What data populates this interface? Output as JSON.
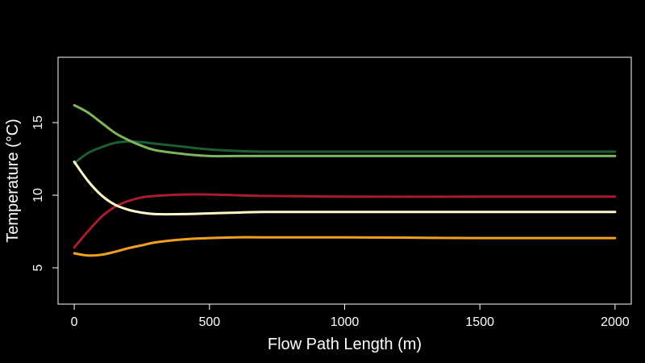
{
  "chart_data": {
    "type": "line",
    "title": "",
    "xlabel": "Flow Path Length (m)",
    "ylabel": "Temperature (°C)",
    "xlim": [
      -60,
      2060
    ],
    "ylim": [
      2.5,
      19.5
    ],
    "x_ticks": [
      0,
      500,
      1000,
      1500,
      2000
    ],
    "y_ticks": [
      5,
      10,
      15
    ],
    "grid": false,
    "background": "#000000",
    "axis_color": "#ffffff",
    "series": [
      {
        "color": "#1b5e35",
        "x": [
          0,
          50,
          100,
          150,
          200,
          250,
          300,
          400,
          500,
          600,
          700,
          1000,
          1500,
          2000
        ],
        "y": [
          12.2,
          12.9,
          13.3,
          13.6,
          13.7,
          13.65,
          13.55,
          13.35,
          13.15,
          13.05,
          13.0,
          13.0,
          13.0,
          13.0
        ]
      },
      {
        "color": "#7cb55c",
        "x": [
          0,
          50,
          100,
          150,
          200,
          250,
          300,
          400,
          500,
          600,
          700,
          1000,
          1500,
          2000
        ],
        "y": [
          16.2,
          15.7,
          15.0,
          14.3,
          13.8,
          13.4,
          13.1,
          12.85,
          12.7,
          12.7,
          12.7,
          12.7,
          12.7,
          12.7
        ]
      },
      {
        "color": "#a81c2e",
        "x": [
          0,
          50,
          100,
          150,
          200,
          250,
          300,
          400,
          500,
          600,
          700,
          1000,
          1500,
          2000
        ],
        "y": [
          6.4,
          7.5,
          8.5,
          9.2,
          9.6,
          9.85,
          9.95,
          10.05,
          10.05,
          10.0,
          9.95,
          9.9,
          9.9,
          9.9
        ]
      },
      {
        "color": "#fff8c8",
        "x": [
          0,
          50,
          100,
          150,
          200,
          250,
          300,
          400,
          500,
          600,
          700,
          1000,
          1500,
          2000
        ],
        "y": [
          12.3,
          11.0,
          10.0,
          9.35,
          9.0,
          8.8,
          8.7,
          8.7,
          8.75,
          8.8,
          8.85,
          8.85,
          8.85,
          8.85
        ]
      },
      {
        "color": "#f2a01e",
        "x": [
          0,
          50,
          100,
          150,
          200,
          250,
          300,
          400,
          500,
          600,
          700,
          1000,
          1500,
          2000
        ],
        "y": [
          6.0,
          5.85,
          5.9,
          6.1,
          6.35,
          6.55,
          6.75,
          6.95,
          7.05,
          7.1,
          7.1,
          7.1,
          7.05,
          7.05
        ]
      }
    ]
  }
}
